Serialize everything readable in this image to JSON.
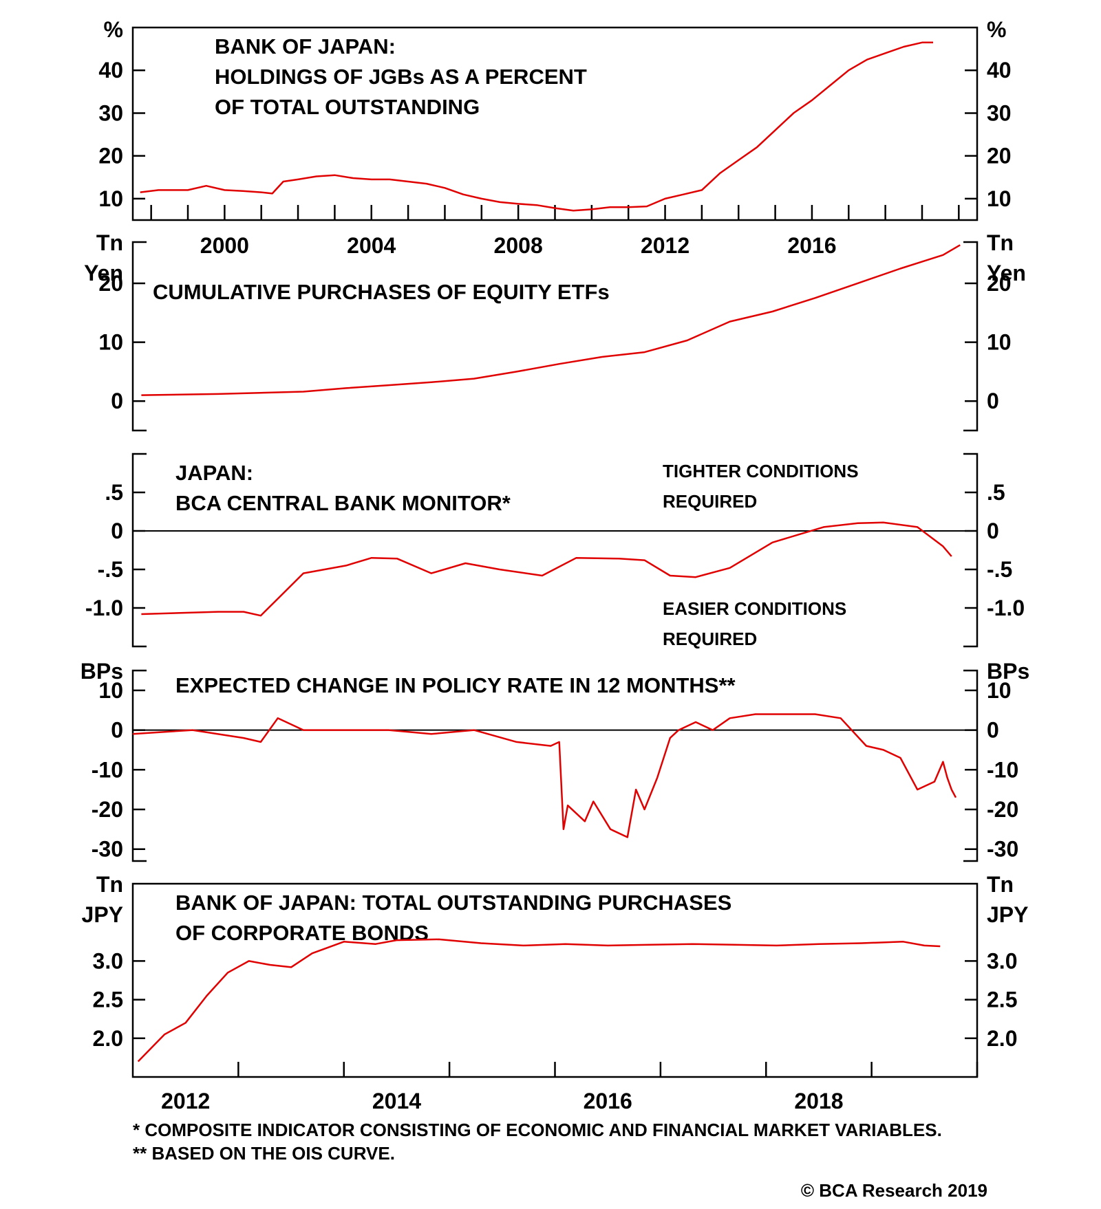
{
  "chart_data": [
    {
      "type": "line",
      "title_lines": [
        "BANK OF JAPAN:",
        "HOLDINGS OF JGBs AS A PERCENT",
        "OF TOTAL OUTSTANDING"
      ],
      "units": "%",
      "ylim": [
        5,
        50
      ],
      "yticks": [
        10,
        20,
        30,
        40
      ],
      "ytick_labels": [
        "10",
        "20",
        "30",
        "40"
      ],
      "xlim": [
        1997.5,
        2020.5
      ],
      "year_labels": [
        "2000",
        "2004",
        "2008",
        "2012",
        "2016"
      ],
      "year_values": [
        2000,
        2004,
        2008,
        2012,
        2016
      ],
      "series": [
        {
          "x": [
            1997.7,
            1998.2,
            1999.0,
            1999.5,
            2000.0,
            2000.5,
            2001.0,
            2001.3,
            2001.6,
            2002.0,
            2002.5,
            2003.0,
            2003.5,
            2004.0,
            2004.5,
            2005.0,
            2005.5,
            2006.0,
            2006.5,
            2007.0,
            2007.5,
            2008.0,
            2008.5,
            2009.0,
            2009.5,
            2010.0,
            2010.5,
            2011.0,
            2011.5,
            2012.0,
            2012.5,
            2013.0,
            2013.5,
            2014.0,
            2014.5,
            2015.0,
            2015.5,
            2016.0,
            2016.5,
            2017.0,
            2017.5,
            2018.0,
            2018.5,
            2019.0,
            2019.3
          ],
          "y": [
            11.5,
            12,
            12,
            13,
            12,
            11.8,
            11.5,
            11.2,
            14,
            14.5,
            15.2,
            15.5,
            14.8,
            14.5,
            14.5,
            14,
            13.5,
            12.5,
            11,
            10,
            9.2,
            8.8,
            8.5,
            7.8,
            7.2,
            7.5,
            8,
            8,
            8.2,
            10,
            11,
            12,
            16,
            19,
            22,
            26,
            30,
            33,
            36.5,
            40,
            42.5,
            44,
            45.5,
            46.5,
            46.5
          ]
        }
      ]
    },
    {
      "type": "line",
      "title": "CUMULATIVE PURCHASES OF EQUITY ETFs",
      "units": [
        "Tn",
        "Yen"
      ],
      "ylim": [
        -5,
        27
      ],
      "yticks": [
        0,
        10,
        20
      ],
      "ytick_labels": [
        "0",
        "10",
        "20"
      ],
      "xlim": [
        2010.0,
        2019.9
      ],
      "series": [
        {
          "x": [
            2010.1,
            2011.0,
            2012.0,
            2012.5,
            2013.0,
            2013.5,
            2014.0,
            2014.5,
            2015.0,
            2015.5,
            2016.0,
            2016.5,
            2017.0,
            2017.5,
            2018.0,
            2018.5,
            2019.0,
            2019.5,
            2019.7
          ],
          "y": [
            1,
            1.2,
            1.6,
            2.2,
            2.7,
            3.2,
            3.8,
            5,
            6.3,
            7.5,
            8.3,
            10.3,
            13.5,
            15.2,
            17.5,
            20,
            22.5,
            24.8,
            26.5
          ]
        }
      ]
    },
    {
      "type": "line",
      "title_lines": [
        "JAPAN:",
        "BCA CENTRAL BANK MONITOR*"
      ],
      "annotations": {
        "upper": [
          "TIGHTER CONDITIONS",
          "REQUIRED"
        ],
        "lower": [
          "EASIER CONDITIONS",
          "REQUIRED"
        ]
      },
      "ylim": [
        -1.5,
        1.0
      ],
      "yticks": [
        0.5,
        0,
        -0.5,
        -1.0
      ],
      "ytick_labels": [
        ".5",
        "0",
        "-.5",
        "-1.0"
      ],
      "zero_line": true,
      "xlim": [
        2010.0,
        2019.9
      ],
      "series": [
        {
          "x": [
            2010.1,
            2011.0,
            2011.3,
            2011.5,
            2011.7,
            2012.0,
            2012.5,
            2012.8,
            2013.1,
            2013.5,
            2013.9,
            2014.3,
            2014.8,
            2015.2,
            2015.7,
            2016.0,
            2016.3,
            2016.6,
            2017.0,
            2017.5,
            2017.8,
            2018.1,
            2018.5,
            2018.8,
            2019.2,
            2019.5,
            2019.6
          ],
          "y": [
            -1.08,
            -1.05,
            -1.05,
            -1.1,
            -0.88,
            -0.55,
            -0.45,
            -0.35,
            -0.36,
            -0.55,
            -0.42,
            -0.5,
            -0.58,
            -0.35,
            -0.36,
            -0.38,
            -0.58,
            -0.6,
            -0.48,
            -0.15,
            -0.05,
            0.05,
            0.1,
            0.11,
            0.05,
            -0.2,
            -0.33
          ]
        }
      ]
    },
    {
      "type": "line",
      "title": "EXPECTED CHANGE IN POLICY RATE IN 12 MONTHS**",
      "units": "BPs",
      "ylim": [
        -33,
        15
      ],
      "yticks": [
        10,
        0,
        -10,
        -20,
        -30
      ],
      "ytick_labels": [
        "10",
        "0",
        "-10",
        "-20",
        "-30"
      ],
      "zero_line": true,
      "xlim": [
        2010.0,
        2019.9
      ],
      "series": [
        {
          "x": [
            2010.0,
            2010.7,
            2011.3,
            2011.5,
            2011.7,
            2012.0,
            2012.5,
            2013.0,
            2013.5,
            2014.0,
            2014.5,
            2014.9,
            2015.0,
            2015.05,
            2015.1,
            2015.3,
            2015.4,
            2015.6,
            2015.8,
            2015.9,
            2016.0,
            2016.15,
            2016.3,
            2016.4,
            2016.6,
            2016.8,
            2017.0,
            2017.3,
            2017.7,
            2018.0,
            2018.3,
            2018.6,
            2018.8,
            2019.0,
            2019.2,
            2019.4,
            2019.5,
            2019.55,
            2019.6,
            2019.65
          ],
          "y": [
            -1,
            0,
            -2,
            -3,
            3,
            0,
            0,
            0,
            -1,
            0,
            -3,
            -4,
            -3,
            -25,
            -19,
            -23,
            -18,
            -25,
            -27,
            -15,
            -20,
            -12,
            -2,
            0,
            2,
            0,
            3,
            4,
            4,
            4,
            3,
            -4,
            -5,
            -7,
            -15,
            -13,
            -8,
            -12,
            -15,
            -17
          ]
        }
      ]
    },
    {
      "type": "line",
      "title_lines": [
        "BANK OF JAPAN: TOTAL OUTSTANDING PURCHASES",
        "OF CORPORATE BONDS"
      ],
      "units": [
        "Tn",
        "JPY"
      ],
      "ylim": [
        1.5,
        4.0
      ],
      "yticks": [
        3.0,
        2.5,
        2.0
      ],
      "ytick_labels": [
        "3.0",
        "2.5",
        "2.0"
      ],
      "xlim": [
        2011.5,
        2019.5
      ],
      "year_labels": [
        "2012",
        "2014",
        "2016",
        "2018"
      ],
      "year_values": [
        2012,
        2014,
        2016,
        2018
      ],
      "series": [
        {
          "x": [
            2011.55,
            2011.8,
            2012.0,
            2012.2,
            2012.4,
            2012.6,
            2012.8,
            2013.0,
            2013.2,
            2013.5,
            2013.8,
            2014.0,
            2014.4,
            2014.8,
            2015.2,
            2015.6,
            2016.0,
            2016.4,
            2016.8,
            2017.2,
            2017.6,
            2018.0,
            2018.4,
            2018.8,
            2019.0,
            2019.15
          ],
          "y": [
            1.7,
            2.05,
            2.2,
            2.55,
            2.85,
            3.0,
            2.95,
            2.92,
            3.1,
            3.25,
            3.22,
            3.27,
            3.28,
            3.23,
            3.2,
            3.22,
            3.2,
            3.21,
            3.22,
            3.21,
            3.2,
            3.22,
            3.23,
            3.25,
            3.2,
            3.19
          ]
        }
      ]
    }
  ],
  "footnotes": [
    "*  COMPOSITE INDICATOR CONSISTING OF ECONOMIC AND FINANCIAL MARKET VARIABLES.",
    "** BASED ON THE OIS CURVE."
  ],
  "credit": "© BCA Research 2019",
  "colors": {
    "series": "#e00000",
    "axis": "#000000"
  }
}
